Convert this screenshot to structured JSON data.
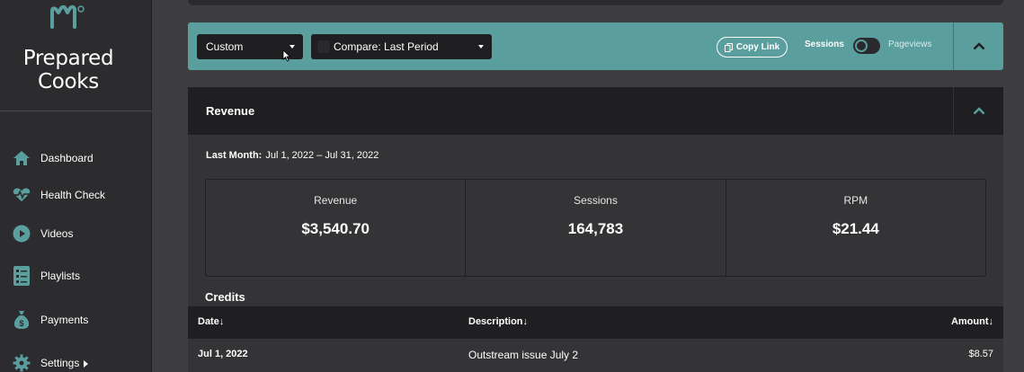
{
  "colors": {
    "accent": "#5a9e9e",
    "sidebar_bg": "#2c2b2d",
    "panel_header_bg": "#1f1e20",
    "panel_body_bg": "#343335"
  },
  "sidebar": {
    "brand_line1": "Prepared",
    "brand_line2": "Cooks",
    "items": [
      {
        "label": "Dashboard",
        "icon": "home-icon"
      },
      {
        "label": "Health Check",
        "icon": "heartbeat-icon"
      },
      {
        "label": "Videos",
        "icon": "play-circle-icon"
      },
      {
        "label": "Playlists",
        "icon": "list-icon"
      },
      {
        "label": "Payments",
        "icon": "money-bag-icon"
      },
      {
        "label": "Settings",
        "icon": "gear-icon"
      }
    ]
  },
  "toolbar": {
    "date_range_value": "Custom",
    "compare_value": "Compare: Last Period",
    "copy_link_label": "Copy Link",
    "toggle_left_label": "Sessions",
    "toggle_right_label": "Pageviews",
    "toggle_state": "Sessions"
  },
  "revenue_panel": {
    "title": "Revenue",
    "period_label": "Last Month:",
    "period_range": "Jul 1, 2022 – Jul 31, 2022",
    "stats": [
      {
        "label": "Revenue",
        "value": "$3,540.70"
      },
      {
        "label": "Sessions",
        "value": "164,783"
      },
      {
        "label": "RPM",
        "value": "$21.44"
      }
    ]
  },
  "credits": {
    "title": "Credits",
    "columns": {
      "date": "Date↓",
      "description": "Description↓",
      "amount": "Amount↓"
    },
    "rows": [
      {
        "date": "Jul 1, 2022",
        "description": "Outstream issue July 2",
        "amount": "$8.57"
      }
    ]
  }
}
